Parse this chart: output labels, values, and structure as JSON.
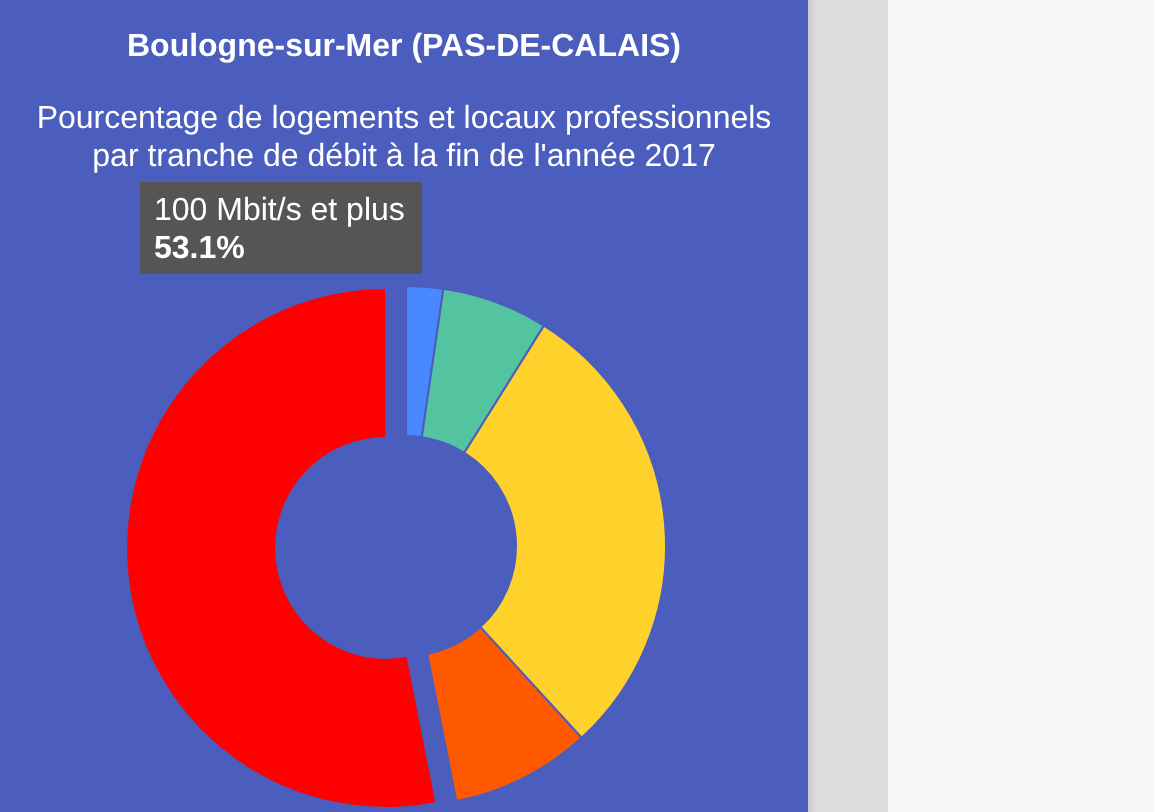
{
  "chart_data": {
    "type": "donut",
    "title": "Boulogne-sur-Mer (PAS-DE-CALAIS)",
    "subtitle": "Pourcentage de logements et locaux professionnels par tranche de débit à la fin de l'année 2017",
    "categories": [
      null,
      null,
      null,
      null,
      "100 Mbit/s et plus"
    ],
    "values": [
      2.3,
      6.6,
      29.3,
      8.7,
      53.1
    ],
    "colors": [
      "#4a88ff",
      "#53c49f",
      "#ffd22b",
      "#ff5900",
      "#ff0000"
    ],
    "value_labels": [
      null,
      null,
      null,
      null,
      "53.1%"
    ]
  }
}
